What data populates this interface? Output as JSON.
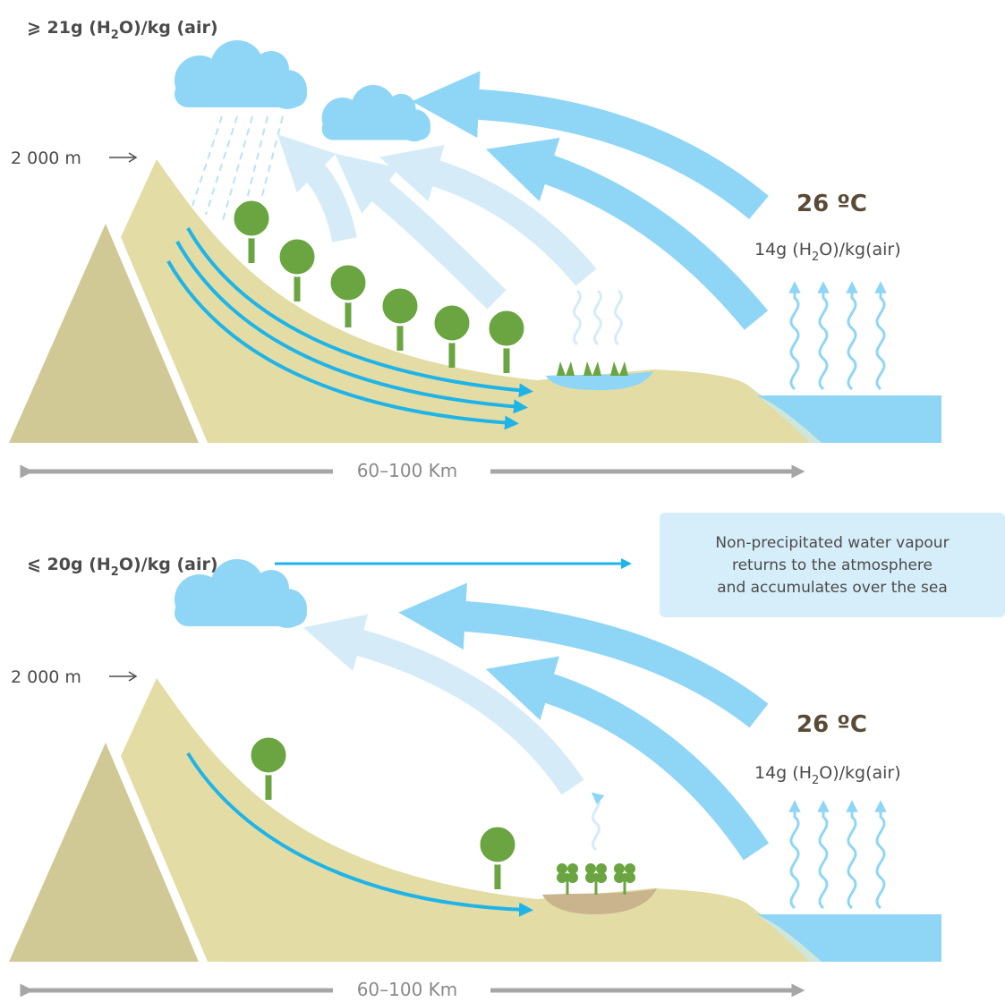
{
  "panels": [
    {
      "humidity": {
        "prefix": "⩾ 21g (H",
        "sub": "2",
        "suffix": "O)/kg (air)"
      },
      "altitude": "2 000 m",
      "temperature": "26 ºC",
      "sea_humidity": {
        "prefix": "14g (H",
        "sub": "2",
        "suffix": "O)/kg(air)"
      },
      "distance": "60–100 Km"
    },
    {
      "humidity": {
        "prefix": "⩽ 20g (H",
        "sub": "2",
        "suffix": "O)/kg (air)"
      },
      "note": [
        "Non-precipitated water vapour",
        "returns to the atmosphere",
        "and accumulates over the sea"
      ],
      "altitude": "2 000 m",
      "temperature": "26 ºC",
      "sea_humidity": {
        "prefix": "14g (H",
        "sub": "2",
        "suffix": "O)/kg(air)"
      },
      "distance": "60–100 Km"
    }
  ]
}
